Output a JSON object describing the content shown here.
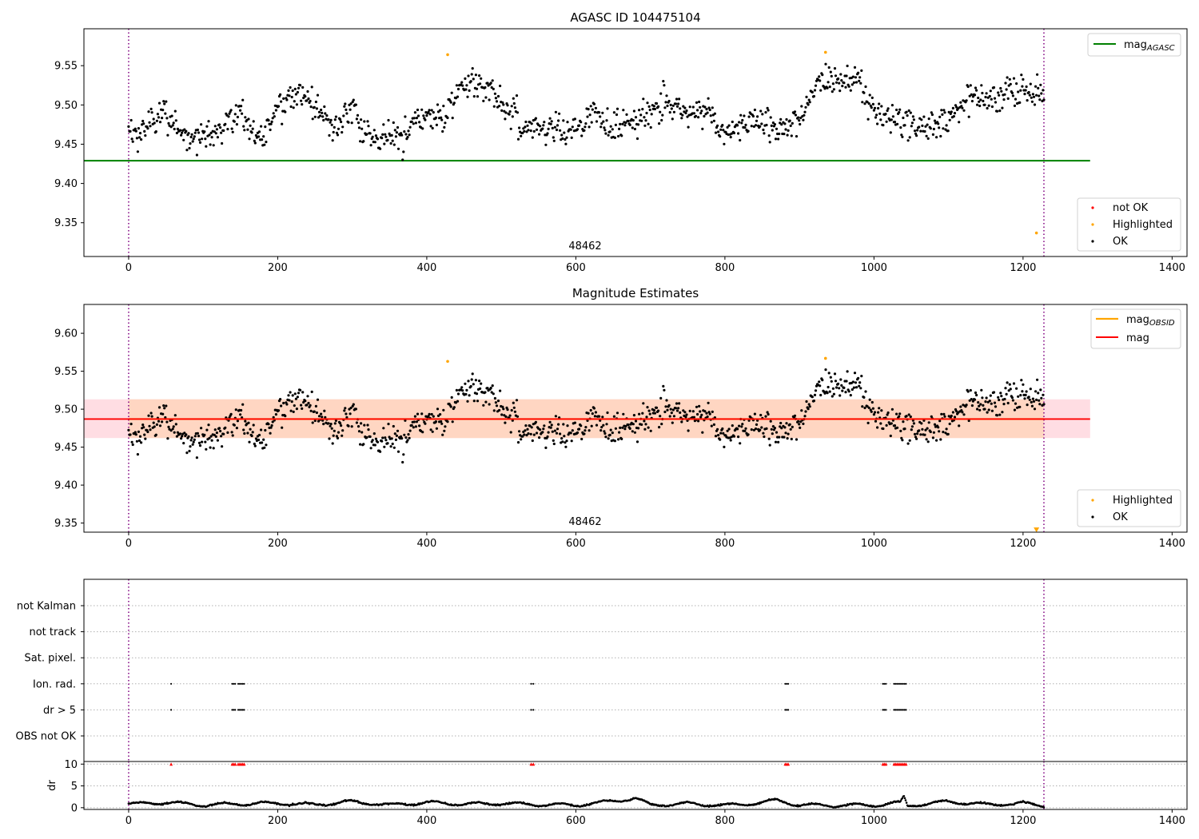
{
  "chart_data": [
    {
      "type": "scatter",
      "title": "AGASC ID 104475104",
      "xlabel": "",
      "ylabel": "",
      "xlim": [
        -60,
        1420
      ],
      "ylim": [
        9.307,
        9.597
      ],
      "x_ticks": [
        0,
        200,
        400,
        600,
        800,
        1000,
        1200,
        1400
      ],
      "y_ticks": [
        9.35,
        9.4,
        9.45,
        9.5,
        9.55
      ],
      "obsid_label": "48462",
      "obsid_label_x": 615,
      "vlines": [
        0,
        1228
      ],
      "colors": {
        "ok": "#000000",
        "highlighted": "#ffa500",
        "not_ok": "#ff0000",
        "mag_agasc": "#008000",
        "vline": "#800080"
      },
      "hlines": [
        {
          "name": "mag_agasc_line",
          "y": 9.429,
          "x0": -60,
          "x1": 1290
        }
      ],
      "legend_upper": {
        "placement": "top-right",
        "entries": [
          {
            "label": "mag",
            "sub": "AGASC",
            "kind": "line",
            "color": "#008000"
          }
        ]
      },
      "legend_lower": {
        "placement": "bottom-right",
        "entries": [
          {
            "label": "not OK",
            "kind": "dot",
            "color": "#ff0000"
          },
          {
            "label": "Highlighted",
            "kind": "dot",
            "color": "#ffa500"
          },
          {
            "label": "OK",
            "kind": "dot",
            "color": "#000000"
          }
        ]
      },
      "highlighted_points": [
        {
          "x": 428,
          "y": 9.564
        },
        {
          "x": 935,
          "y": 9.567
        },
        {
          "x": 1218,
          "y": 9.337
        }
      ],
      "ok_trend": {
        "x": [
          0,
          25,
          50,
          75,
          100,
          125,
          150,
          175,
          200,
          225,
          250,
          275,
          300,
          325,
          350,
          375,
          400,
          425,
          450,
          475,
          500,
          525,
          550,
          575,
          600,
          625,
          650,
          675,
          700,
          725,
          750,
          775,
          800,
          825,
          850,
          875,
          900,
          925,
          950,
          975,
          1000,
          1025,
          1050,
          1075,
          1100,
          1125,
          1150,
          1175,
          1200,
          1228
        ],
        "y": [
          9.465,
          9.47,
          9.495,
          9.455,
          9.462,
          9.468,
          9.49,
          9.45,
          9.495,
          9.515,
          9.5,
          9.47,
          9.495,
          9.46,
          9.457,
          9.465,
          9.49,
          9.485,
          9.53,
          9.525,
          9.505,
          9.475,
          9.47,
          9.47,
          9.465,
          9.49,
          9.465,
          9.48,
          9.49,
          9.505,
          9.485,
          9.495,
          9.46,
          9.475,
          9.48,
          9.47,
          9.48,
          9.53,
          9.53,
          9.535,
          9.49,
          9.485,
          9.475,
          9.47,
          9.48,
          9.51,
          9.505,
          9.515,
          9.515,
          9.515
        ],
        "spread": 0.018,
        "count": 1100
      }
    },
    {
      "type": "scatter",
      "title": "Magnitude Estimates",
      "xlabel": "",
      "ylabel": "",
      "xlim": [
        -60,
        1420
      ],
      "ylim": [
        9.338,
        9.638
      ],
      "x_ticks": [
        0,
        200,
        400,
        600,
        800,
        1000,
        1200,
        1400
      ],
      "y_ticks": [
        9.35,
        9.4,
        9.45,
        9.5,
        9.55,
        9.6
      ],
      "obsid_label": "48462",
      "obsid_label_x": 615,
      "vlines": [
        0,
        1228
      ],
      "colors": {
        "ok": "#000000",
        "highlighted": "#ffa500",
        "mag": "#ff0000",
        "mag_obsid": "#ffa500",
        "band_outer": "#ffdde3",
        "band_inner": "#ffd6c2",
        "vline": "#800080"
      },
      "mag_line": {
        "y": 9.487,
        "x0": -60,
        "x1": 1290
      },
      "mag_obsid_line": {
        "y": 9.487,
        "x0": 0,
        "x1": 1228
      },
      "band_outer": {
        "y0": 9.462,
        "y1": 9.513,
        "x0": -60,
        "x1": 1290
      },
      "band_inner": {
        "y0": 9.462,
        "y1": 9.513,
        "x0": 0,
        "x1": 1228
      },
      "legend_upper": {
        "placement": "top-right",
        "entries": [
          {
            "label": "mag",
            "sub": "OBSID",
            "kind": "line",
            "color": "#ffa500"
          },
          {
            "label": "mag",
            "kind": "line",
            "color": "#ff0000"
          }
        ]
      },
      "legend_lower": {
        "placement": "bottom-right",
        "entries": [
          {
            "label": "Highlighted",
            "kind": "dot",
            "color": "#ffa500"
          },
          {
            "label": "OK",
            "kind": "dot",
            "color": "#000000"
          }
        ]
      },
      "highlighted_points": [
        {
          "x": 428,
          "y": 9.563
        },
        {
          "x": 935,
          "y": 9.567
        }
      ],
      "off_scale_marker": {
        "x": 1218,
        "y": 9.341
      },
      "ok_trend_ref": 0,
      "count": 1100
    },
    {
      "type": "scatter",
      "title": "",
      "xlabel": "",
      "ylabel": "",
      "xlim": [
        -60,
        1420
      ],
      "x_ticks": [
        0,
        200,
        400,
        600,
        800,
        1000,
        1200,
        1400
      ],
      "flag_categories": [
        "not Kalman",
        "not track",
        "Sat. pixel.",
        "Ion. rad.",
        "dr > 5",
        "OBS not OK"
      ],
      "flag_points": {
        "Ion. rad.": [
          57,
          139,
          141,
          143,
          147,
          149,
          151,
          153,
          155,
          540,
          543,
          881,
          883,
          885,
          1012,
          1014,
          1016,
          1027,
          1029,
          1031,
          1033,
          1035,
          1037,
          1039,
          1041,
          1043
        ],
        "dr > 5": [
          57,
          139,
          141,
          143,
          147,
          149,
          151,
          153,
          155,
          540,
          543,
          881,
          883,
          885,
          1012,
          1014,
          1016,
          1027,
          1029,
          1031,
          1033,
          1035,
          1037,
          1039,
          1041,
          1043
        ]
      },
      "vlines": [
        0,
        1228
      ],
      "colors": {
        "flag": "#000000",
        "dr_over": "#ff0000",
        "dr": "#000000",
        "vline": "#800080",
        "grid": "#b0b0b0"
      },
      "dr_axis": {
        "ylabel": "dr",
        "ylim": [
          -0.4,
          10.6
        ],
        "y_ticks": [
          0,
          5,
          10
        ],
        "clip_marker_x": [
          57,
          139,
          141,
          143,
          147,
          149,
          151,
          153,
          155,
          540,
          543,
          881,
          883,
          885,
          1012,
          1014,
          1016,
          1027,
          1029,
          1031,
          1033,
          1035,
          1037,
          1039,
          1041,
          1043
        ]
      },
      "dr_trend": {
        "x": [
          0,
          50,
          100,
          150,
          200,
          250,
          300,
          350,
          400,
          450,
          500,
          550,
          600,
          650,
          680,
          700,
          750,
          800,
          850,
          870,
          900,
          950,
          1000,
          1035,
          1040,
          1045,
          1100,
          1150,
          1200,
          1228
        ],
        "y": [
          0.8,
          1.2,
          0.6,
          0.9,
          1.0,
          0.7,
          1.4,
          0.6,
          1.2,
          0.8,
          1.0,
          0.7,
          0.6,
          1.5,
          2.2,
          0.6,
          0.9,
          0.5,
          1.2,
          1.7,
          0.6,
          0.5,
          0.6,
          1.1,
          2.5,
          0.4,
          1.4,
          0.7,
          1.0,
          0.5
        ],
        "count": 1100
      }
    }
  ]
}
